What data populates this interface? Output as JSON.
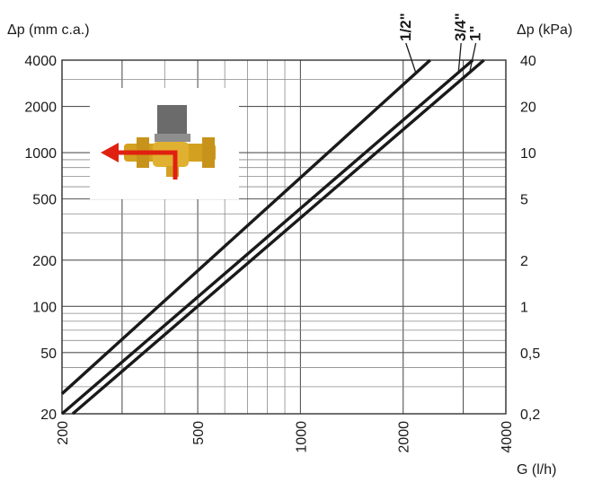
{
  "chart_data": {
    "type": "line",
    "scale": "log-log",
    "xlabel": "G (l/h)",
    "ylabel_left": "Δp (mm c.a.)",
    "ylabel_right": "Δp (kPa)",
    "xlim": [
      200,
      4000
    ],
    "ylim": [
      20,
      4000
    ],
    "x_ticks": [
      200,
      500,
      1000,
      2000,
      4000
    ],
    "x_tick_labels": [
      "200",
      "500",
      "1000",
      "2000",
      "4000"
    ],
    "y_ticks": [
      20,
      50,
      100,
      200,
      500,
      1000,
      2000,
      4000
    ],
    "y_tick_labels_left": [
      "20",
      "50",
      "100",
      "200",
      "500",
      "1000",
      "2000",
      "4000"
    ],
    "y_tick_labels_right": [
      "0,2",
      "0,5",
      "1",
      "2",
      "5",
      "10",
      "20",
      "40"
    ],
    "grid": true,
    "series": [
      {
        "name": "1/2\"",
        "x": [
          200,
          2400
        ],
        "y": [
          27,
          4000
        ]
      },
      {
        "name": "3/4\"",
        "x": [
          200,
          3200
        ],
        "y": [
          20,
          4000
        ]
      },
      {
        "name": "1\"",
        "x": [
          215,
          3450
        ],
        "y": [
          20,
          4000
        ]
      }
    ],
    "line_color": "#1a1a1a"
  },
  "inset": {
    "icon": "valve-icon",
    "flow_arrow_color": "#e02010",
    "valve_body_color": "#d4a020",
    "actuator_color": "#6b6b6b"
  }
}
